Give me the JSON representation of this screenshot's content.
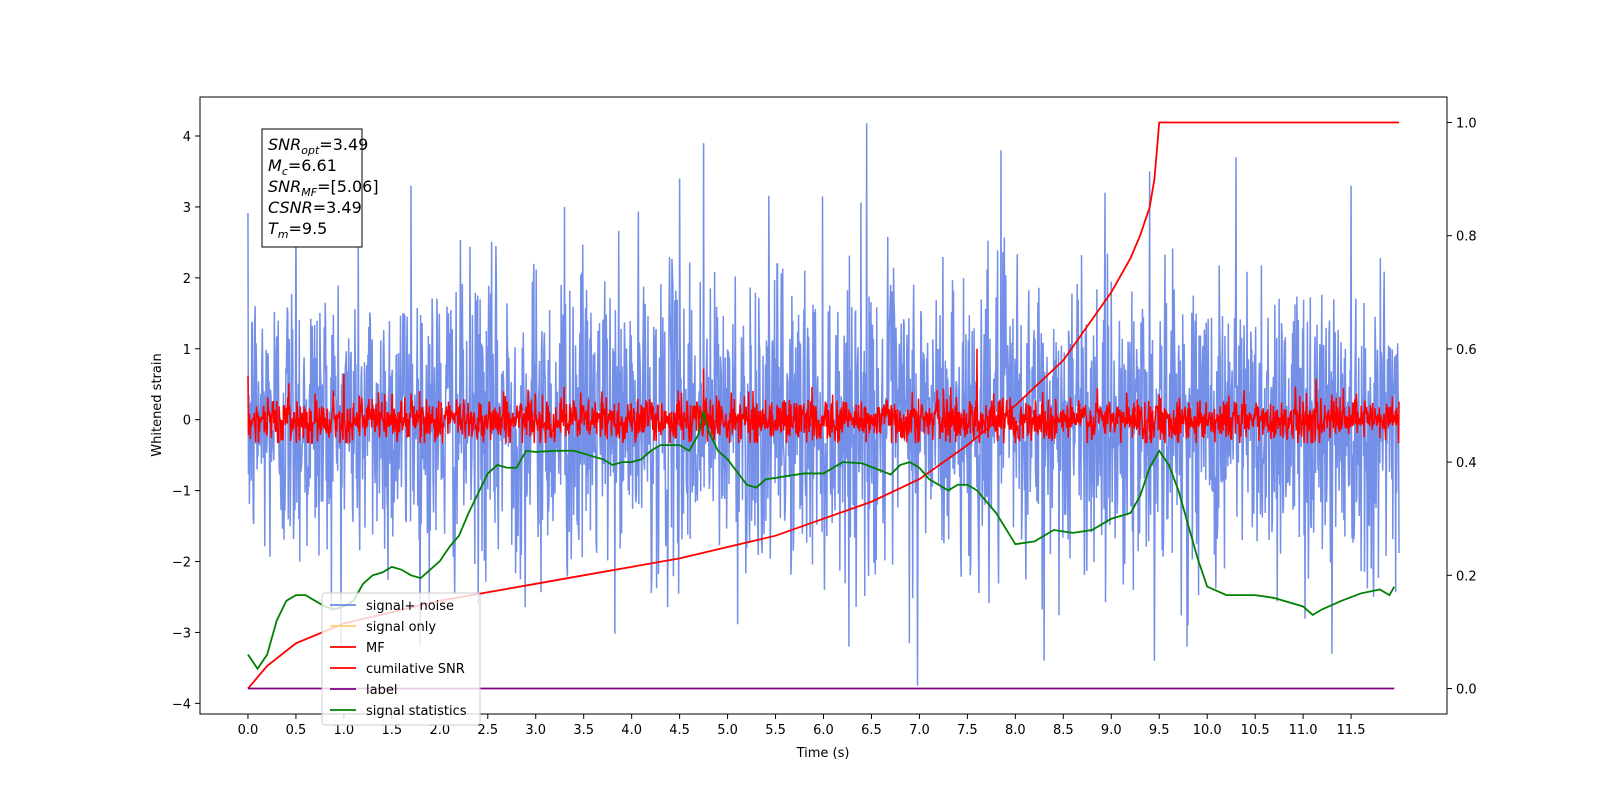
{
  "chart_data": {
    "type": "line",
    "xlabel": "Time (s)",
    "ylabel_left": "Whitened strain",
    "ylabel_right": "",
    "xlim": [
      -0.5,
      12.5
    ],
    "ylim_left": [
      -4.15,
      4.55
    ],
    "ylim_right": [
      -0.045,
      1.045
    ],
    "x_ticks": [
      0.0,
      0.5,
      1.0,
      1.5,
      2.0,
      2.5,
      3.0,
      3.5,
      4.0,
      4.5,
      5.0,
      5.5,
      6.0,
      6.5,
      7.0,
      7.5,
      8.0,
      8.5,
      9.0,
      9.5,
      10.0,
      10.5,
      11.0,
      11.5
    ],
    "x_tick_labels": [
      "0.0",
      "0.5",
      "1.0",
      "1.5",
      "2.0",
      "2.5",
      "3.0",
      "3.5",
      "4.0",
      "4.5",
      "5.0",
      "5.5",
      "6.0",
      "6.5",
      "7.0",
      "7.5",
      "8.0",
      "8.5",
      "9.0",
      "9.5",
      "10.0",
      "10.5",
      "11.0",
      "11.5"
    ],
    "y_ticks_left": [
      -4,
      -3,
      -2,
      -1,
      0,
      1,
      2,
      3,
      4
    ],
    "y_tick_labels_left": [
      "−4",
      "−3",
      "−2",
      "−1",
      "0",
      "1",
      "2",
      "3",
      "4"
    ],
    "y_ticks_right": [
      0.0,
      0.2,
      0.4,
      0.6,
      0.8,
      1.0
    ],
    "y_tick_labels_right": [
      "0.0",
      "0.2",
      "0.4",
      "0.6",
      "0.8",
      "1.0"
    ],
    "grid": false,
    "legend_placement": "lower-left",
    "series": [
      {
        "name": "signal+ noise",
        "axis": "left",
        "color": "#6b89e6",
        "note_values": "dense noise approx. N(0, ~1), x from 0 to 12, range about -3.7 to 4.2",
        "x_range": [
          0.0,
          12.0
        ],
        "approx_min": -3.75,
        "approx_max": 4.18,
        "notable_peaks": [
          [
            0.5,
            3.2
          ],
          [
            1.7,
            3.3
          ],
          [
            3.3,
            3.0
          ],
          [
            4.5,
            3.4
          ],
          [
            4.75,
            3.9
          ],
          [
            6.45,
            4.18
          ],
          [
            7.85,
            3.8
          ],
          [
            9.4,
            3.5
          ],
          [
            10.3,
            3.7
          ],
          [
            11.5,
            3.3
          ],
          [
            6.98,
            -3.75
          ],
          [
            8.3,
            -3.4
          ],
          [
            9.45,
            -3.4
          ],
          [
            11.3,
            -3.3
          ]
        ]
      },
      {
        "name": "signal only",
        "axis": "left",
        "color": "#ffd073",
        "x": [],
        "y": []
      },
      {
        "name": "MF",
        "axis": "left",
        "color": "#ff0000",
        "x_range": [
          0.0,
          12.0
        ],
        "approx_min": -0.35,
        "approx_max": 1.0,
        "notable_peaks": [
          [
            7.6,
            1.0
          ],
          [
            4.75,
            0.72
          ],
          [
            0.0,
            0.62
          ],
          [
            1.0,
            0.65
          ]
        ]
      },
      {
        "name": "cumilative SNR",
        "axis": "right",
        "color": "#ff0000",
        "x": [
          0.0,
          0.2,
          0.5,
          1.0,
          1.5,
          2.0,
          2.5,
          3.0,
          3.5,
          4.0,
          4.5,
          5.0,
          5.5,
          6.0,
          6.5,
          7.0,
          7.5,
          8.0,
          8.5,
          9.0,
          9.2,
          9.3,
          9.4,
          9.45,
          9.5,
          10.0,
          10.5,
          11.0,
          11.5,
          12.0
        ],
        "y": [
          0.0,
          0.04,
          0.08,
          0.115,
          0.135,
          0.155,
          0.17,
          0.185,
          0.2,
          0.215,
          0.23,
          0.25,
          0.27,
          0.3,
          0.33,
          0.37,
          0.43,
          0.5,
          0.58,
          0.7,
          0.76,
          0.8,
          0.85,
          0.9,
          1.0,
          1.0,
          1.0,
          1.0,
          1.0,
          1.0
        ]
      },
      {
        "name": "label",
        "axis": "right",
        "color": "#800080",
        "x": [
          0.0,
          11.95
        ],
        "y": [
          0.0,
          0.0
        ]
      },
      {
        "name": "signal statistics",
        "axis": "right",
        "color": "#008000",
        "x": [
          0.0,
          0.1,
          0.2,
          0.3,
          0.4,
          0.5,
          0.6,
          0.7,
          0.8,
          0.9,
          1.0,
          1.1,
          1.2,
          1.3,
          1.4,
          1.5,
          1.6,
          1.7,
          1.8,
          1.9,
          2.0,
          2.1,
          2.2,
          2.3,
          2.4,
          2.5,
          2.6,
          2.7,
          2.8,
          2.9,
          3.0,
          3.2,
          3.4,
          3.6,
          3.7,
          3.8,
          3.9,
          4.0,
          4.1,
          4.2,
          4.3,
          4.4,
          4.5,
          4.6,
          4.7,
          4.75,
          4.8,
          4.9,
          5.0,
          5.2,
          5.3,
          5.4,
          5.5,
          5.6,
          5.8,
          6.0,
          6.2,
          6.4,
          6.6,
          6.7,
          6.8,
          6.9,
          7.0,
          7.1,
          7.2,
          7.3,
          7.4,
          7.5,
          7.6,
          7.8,
          8.0,
          8.2,
          8.4,
          8.6,
          8.8,
          9.0,
          9.2,
          9.3,
          9.4,
          9.5,
          9.6,
          9.7,
          9.9,
          10.0,
          10.2,
          10.5,
          10.7,
          11.0,
          11.1,
          11.2,
          11.4,
          11.6,
          11.8,
          11.9,
          11.95
        ],
        "y": [
          0.06,
          0.035,
          0.06,
          0.12,
          0.155,
          0.165,
          0.165,
          0.155,
          0.145,
          0.14,
          0.145,
          0.155,
          0.185,
          0.2,
          0.205,
          0.215,
          0.21,
          0.2,
          0.195,
          0.21,
          0.225,
          0.25,
          0.27,
          0.31,
          0.345,
          0.38,
          0.395,
          0.39,
          0.39,
          0.42,
          0.418,
          0.42,
          0.42,
          0.41,
          0.405,
          0.395,
          0.4,
          0.4,
          0.405,
          0.42,
          0.43,
          0.43,
          0.43,
          0.42,
          0.45,
          0.49,
          0.455,
          0.42,
          0.405,
          0.36,
          0.355,
          0.37,
          0.372,
          0.375,
          0.38,
          0.38,
          0.4,
          0.398,
          0.385,
          0.378,
          0.395,
          0.4,
          0.39,
          0.37,
          0.36,
          0.35,
          0.36,
          0.36,
          0.35,
          0.31,
          0.255,
          0.26,
          0.28,
          0.275,
          0.28,
          0.3,
          0.31,
          0.34,
          0.39,
          0.42,
          0.395,
          0.35,
          0.23,
          0.18,
          0.165,
          0.165,
          0.16,
          0.145,
          0.13,
          0.14,
          0.155,
          0.168,
          0.175,
          0.165,
          0.18
        ]
      }
    ],
    "info_box": {
      "lines": [
        {
          "sym": "SNR",
          "sub": "opt",
          "val": "=3.49"
        },
        {
          "sym": "M",
          "sub": "c",
          "val": "=6.61"
        },
        {
          "sym": "SNR",
          "sub": "MF",
          "val": "=[5.06]"
        },
        {
          "sym": "CSNR",
          "sub": "",
          "val": "=3.49"
        },
        {
          "sym": "T",
          "sub": "m",
          "val": "=9.5"
        }
      ]
    },
    "legend_entries": [
      "signal+ noise",
      "signal only",
      "MF",
      "cumilative SNR",
      "label",
      "signal statistics"
    ]
  }
}
